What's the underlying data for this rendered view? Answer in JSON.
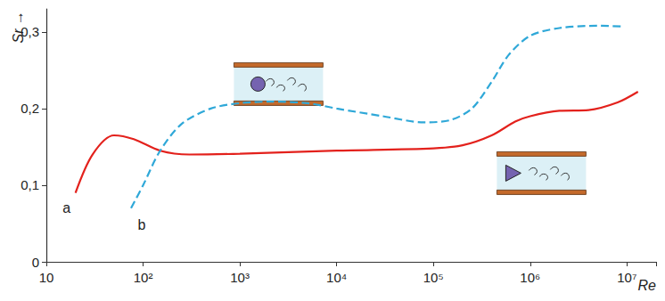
{
  "chart_data": {
    "type": "line",
    "xlabel": "Re",
    "ylabel": "Sr →",
    "log": "x",
    "grid": false,
    "xlim": [
      10,
      20000000
    ],
    "xticks": [
      10,
      {
        "value": 100,
        "label": "10²"
      },
      {
        "value": 1000,
        "label": "10³"
      },
      {
        "value": 10000,
        "label": "10⁴"
      },
      {
        "value": 100000,
        "label": "10⁵"
      },
      {
        "value": 1000000,
        "label": "10⁶"
      },
      {
        "value": 10000000,
        "label": "10⁷"
      }
    ],
    "ylim": [
      0,
      0.33
    ],
    "yticks": [
      0,
      {
        "value": 0.1,
        "label": "0,1"
      },
      {
        "value": 0.2,
        "label": "0,2"
      },
      {
        "value": 0.3,
        "label": "0,3"
      }
    ],
    "series": [
      {
        "name": "a",
        "color": "#e3211c",
        "line_style": "solid",
        "x": [
          20,
          30,
          50,
          80,
          150,
          300,
          1000,
          10000,
          100000,
          200000,
          400000,
          700000,
          1000000,
          2000000,
          4000000,
          8000000,
          13000000
        ],
        "values": [
          0.09,
          0.14,
          0.165,
          0.16,
          0.145,
          0.14,
          0.141,
          0.145,
          0.148,
          0.152,
          0.165,
          0.183,
          0.19,
          0.197,
          0.198,
          0.208,
          0.222
        ]
      },
      {
        "name": "b",
        "color": "#2fa8d8",
        "line_style": "dashed",
        "x": [
          75,
          100,
          150,
          250,
          500,
          1000,
          2000,
          5000,
          10000,
          30000,
          80000,
          150000,
          250000,
          400000,
          600000,
          1000000,
          2000000,
          5000000,
          9000000
        ],
        "values": [
          0.07,
          0.1,
          0.145,
          0.18,
          0.2,
          0.207,
          0.209,
          0.207,
          0.2,
          0.19,
          0.182,
          0.185,
          0.2,
          0.235,
          0.27,
          0.295,
          0.305,
          0.308,
          0.307
        ]
      }
    ]
  }
}
